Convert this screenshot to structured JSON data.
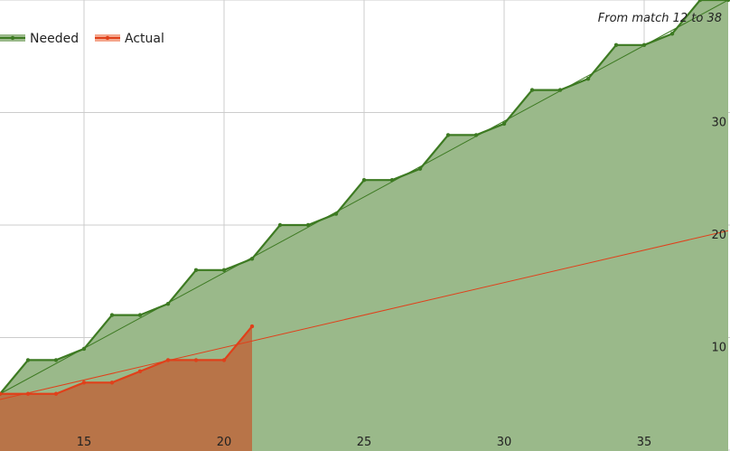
{
  "chart_data": {
    "type": "area",
    "subtitle": "From match 12 to 38",
    "x_ticks": [
      15,
      20,
      25,
      30,
      35
    ],
    "y_ticks": [
      10,
      20,
      30
    ],
    "xlim": [
      12,
      38
    ],
    "ylim": [
      0,
      40
    ],
    "grid": true,
    "legend_position": "top-left",
    "colors": {
      "needed_line": "#3d7a22",
      "needed_fill": "#9ab98a",
      "actual_line": "#e0401a",
      "actual_fill": "#b87448",
      "legend_actual_fill": "#f4a68c",
      "grid": "#cccccc"
    },
    "series": [
      {
        "name": "Needed",
        "x": [
          12,
          13,
          14,
          15,
          16,
          17,
          18,
          19,
          20,
          21,
          22,
          23,
          24,
          25,
          26,
          27,
          28,
          29,
          30,
          31,
          32,
          33,
          34,
          35,
          36,
          37,
          38
        ],
        "values": [
          5,
          8,
          8,
          9,
          12,
          12,
          13,
          16,
          16,
          17,
          20,
          20,
          21,
          24,
          24,
          25,
          28,
          28,
          29,
          32,
          32,
          33,
          36,
          36,
          37,
          40,
          40
        ]
      },
      {
        "name": "Actual",
        "x": [
          12,
          13,
          14,
          15,
          16,
          17,
          18,
          19,
          20,
          21
        ],
        "values": [
          5,
          5,
          5,
          6,
          6,
          7,
          8,
          8,
          8,
          11
        ]
      }
    ],
    "trendlines": [
      {
        "series": "Needed",
        "x": [
          12,
          38
        ],
        "values": [
          5,
          40
        ]
      },
      {
        "series": "Actual",
        "x": [
          12,
          38
        ],
        "values": [
          4.5,
          19.5
        ]
      }
    ]
  }
}
